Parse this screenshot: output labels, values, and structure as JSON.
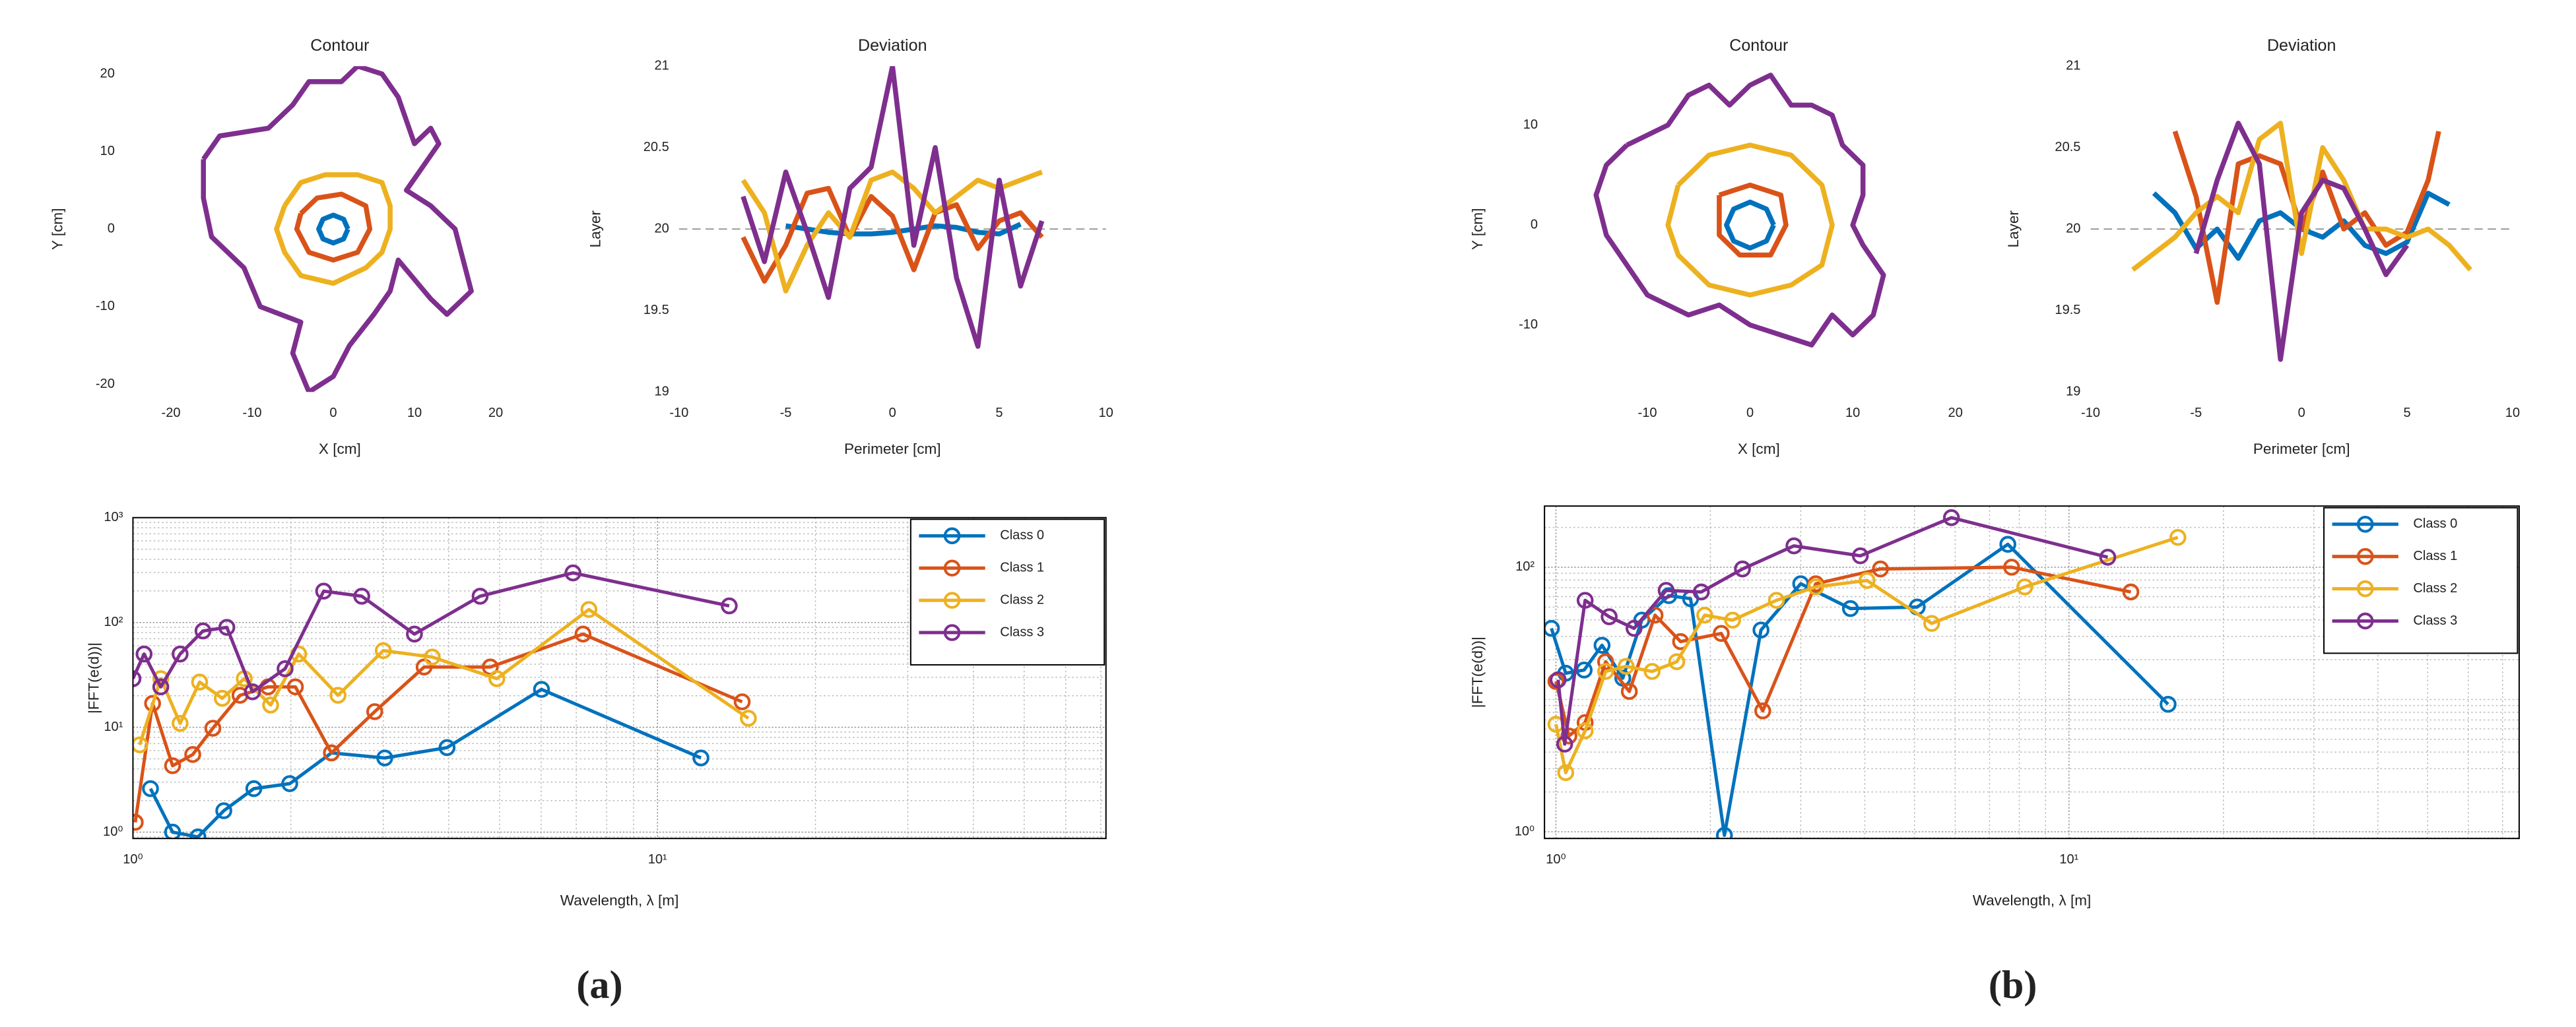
{
  "panel_labels": [
    "(a)",
    "(b)"
  ],
  "chart_data": [
    {
      "type": "line",
      "title": "Contour",
      "xlabel": "X [cm]",
      "ylabel": "Y [cm]",
      "xlim": [
        -25.7,
        27.3
      ],
      "ylim": [
        -21,
        21
      ],
      "xticks": [
        -20,
        -10,
        0,
        10,
        20
      ],
      "yticks": [
        -20,
        -10,
        0,
        10,
        20
      ],
      "grid": false,
      "box": false,
      "series": [
        {
          "color": "#7E2F8E",
          "x": [
            -16,
            -14,
            -8,
            -5,
            -3,
            1,
            3,
            6,
            8,
            9,
            10,
            12,
            13,
            11,
            9,
            12,
            15,
            16,
            17,
            14,
            12,
            8,
            7,
            5,
            2,
            0,
            -3,
            -5,
            -4,
            -9,
            -11,
            -15,
            -16,
            -16
          ],
          "values": [
            9,
            12,
            13,
            16,
            19,
            19,
            21,
            20,
            17,
            14,
            11,
            13,
            11,
            8,
            5,
            3,
            0,
            -4,
            -8,
            -11,
            -9,
            -4,
            -8,
            -11,
            -15,
            -19,
            -21,
            -16,
            -12,
            -10,
            -5,
            -1,
            4,
            9
          ]
        },
        {
          "color": "#EDB120",
          "x": [
            -6,
            -4,
            -1,
            3,
            6,
            7,
            7,
            6,
            4,
            0,
            -4,
            -6,
            -7,
            -6
          ],
          "values": [
            3,
            6,
            7,
            7,
            6,
            3,
            0,
            -3,
            -5,
            -7,
            -6,
            -3,
            0,
            3
          ]
        },
        {
          "color": "#D95319",
          "x": [
            -4,
            -2,
            1,
            4,
            4.5,
            3,
            0,
            -3,
            -4.5,
            -4
          ],
          "values": [
            2,
            4,
            4.5,
            3,
            0,
            -3,
            -4,
            -3,
            0,
            2
          ]
        },
        {
          "color": "#0072BD",
          "x": [
            1.8,
            1.27,
            0,
            -1.27,
            -1.8,
            -1.27,
            0,
            1.27,
            1.8
          ],
          "values": [
            0,
            1.27,
            1.8,
            1.27,
            0,
            -1.27,
            -1.8,
            -1.27,
            0
          ]
        }
      ]
    },
    {
      "type": "line",
      "title": "Deviation",
      "xlabel": "Perimeter [cm]",
      "ylabel": "Layer",
      "xlim": [
        -10,
        10
      ],
      "ylim": [
        19,
        21
      ],
      "xticks": [
        -10,
        -5,
        0,
        5,
        10
      ],
      "yticks": [
        19,
        19.5,
        20,
        20.5,
        21
      ],
      "grid": false,
      "box": false,
      "hline": 20,
      "series": [
        {
          "color": "#0072BD",
          "x": [
            -5,
            -4,
            -3,
            -2,
            -1,
            0,
            1,
            2,
            3,
            4,
            5,
            6
          ],
          "values": [
            20.02,
            20.0,
            19.98,
            19.97,
            19.97,
            19.98,
            20.0,
            20.02,
            20.01,
            19.98,
            19.97,
            20.03
          ]
        },
        {
          "color": "#D95319",
          "x": [
            -7,
            -6,
            -5,
            -4,
            -3,
            -2,
            -1,
            0,
            1,
            2,
            3,
            4,
            5,
            6,
            7
          ],
          "values": [
            19.95,
            19.68,
            19.9,
            20.22,
            20.25,
            19.95,
            20.2,
            20.08,
            19.75,
            20.1,
            20.15,
            19.88,
            20.05,
            20.1,
            19.95
          ]
        },
        {
          "color": "#EDB120",
          "x": [
            -7,
            -6,
            -5,
            -4,
            -3,
            -2,
            -1,
            0,
            1,
            2,
            3,
            4,
            5,
            6,
            7
          ],
          "values": [
            20.3,
            20.1,
            19.62,
            19.9,
            20.1,
            19.95,
            20.3,
            20.35,
            20.25,
            20.1,
            20.2,
            20.3,
            20.25,
            20.3,
            20.35
          ]
        },
        {
          "color": "#7E2F8E",
          "x": [
            -7,
            -6,
            -5,
            -4,
            -3,
            -2,
            -1,
            0,
            1,
            2,
            3,
            4,
            5,
            6,
            7
          ],
          "values": [
            20.2,
            19.8,
            20.35,
            19.98,
            19.58,
            20.25,
            20.38,
            21.0,
            19.9,
            20.5,
            19.7,
            19.28,
            20.3,
            19.65,
            20.05
          ]
        }
      ]
    },
    {
      "type": "line",
      "xlabel": "Wavelength, λ [m]",
      "ylabel": "|FFT(e(d))|",
      "xscale": "log",
      "yscale": "log",
      "xlim": [
        1,
        71.6
      ],
      "ylim": [
        0.87,
        1000
      ],
      "xticks": [
        {
          "value": 1,
          "label": "10⁰"
        },
        {
          "value": 10,
          "label": "10¹"
        }
      ],
      "yticks": [
        {
          "value": 1,
          "label": "10⁰"
        },
        {
          "value": 10,
          "label": "10¹"
        },
        {
          "value": 100,
          "label": "10²"
        },
        {
          "value": 1000,
          "label": "10³"
        }
      ],
      "grid": true,
      "box": true,
      "marker": "o",
      "legend": "upper right",
      "series": [
        {
          "name": "Class 0",
          "color": "#0072BD",
          "x": [
            1.08,
            1.19,
            1.33,
            1.49,
            1.7,
            1.99,
            2.39,
            3.02,
            3.97,
            6.01,
            12.1
          ],
          "values": [
            2.6,
            1.0,
            0.9,
            1.6,
            2.6,
            2.9,
            5.7,
            5.1,
            6.4,
            23,
            5.1
          ]
        },
        {
          "name": "Class 1",
          "color": "#D95319",
          "x": [
            1.01,
            1.09,
            1.19,
            1.3,
            1.42,
            1.6,
            1.81,
            2.04,
            2.39,
            2.89,
            3.59,
            4.8,
            7.21,
            14.5
          ],
          "values": [
            1.24,
            16.9,
            4.3,
            5.5,
            9.8,
            20.2,
            24.3,
            24.3,
            5.7,
            14.1,
            37.6,
            37.6,
            77.5,
            17.5
          ]
        },
        {
          "name": "Class 2",
          "color": "#EDB120",
          "x": [
            1.03,
            1.13,
            1.23,
            1.34,
            1.48,
            1.63,
            1.83,
            2.07,
            2.46,
            3.0,
            3.72,
            4.94,
            7.4,
            14.9
          ],
          "values": [
            6.8,
            29.1,
            10.9,
            27,
            18.9,
            29.1,
            16.3,
            50,
            20.2,
            53.9,
            46.8,
            29.1,
            133,
            12.2
          ]
        },
        {
          "name": "Class 3",
          "color": "#7E2F8E",
          "x": [
            1.0,
            1.05,
            1.13,
            1.23,
            1.36,
            1.51,
            1.69,
            1.95,
            2.31,
            2.73,
            3.44,
            4.59,
            6.9,
            13.7
          ],
          "values": [
            29.1,
            50,
            24.3,
            50,
            83,
            89.8,
            21.8,
            36.2,
            199,
            178,
            77.5,
            178,
            297,
            144
          ]
        }
      ]
    },
    {
      "type": "line",
      "title": "Contour",
      "xlabel": "X [cm]",
      "ylabel": "Y [cm]",
      "xlim": [
        -19.7,
        21.4
      ],
      "ylim": [
        -16.7,
        15.9
      ],
      "xticks": [
        -10,
        0,
        10,
        20
      ],
      "yticks": [
        -10,
        0,
        10
      ],
      "grid": false,
      "box": false,
      "series": [
        {
          "color": "#7E2F8E",
          "x": [
            -12,
            -8,
            -6,
            -4,
            -2,
            0,
            2,
            4,
            6,
            8,
            9,
            11,
            11,
            10,
            11,
            13,
            12,
            10,
            8,
            6,
            3,
            0,
            -3,
            -6,
            -10,
            -12,
            -14,
            -15,
            -14,
            -12
          ],
          "values": [
            8,
            10,
            13,
            14,
            12,
            14,
            15,
            12,
            12,
            11,
            8,
            6,
            3,
            0,
            -2,
            -5,
            -9,
            -11,
            -9,
            -12,
            -11,
            -10,
            -8,
            -9,
            -7,
            -4,
            -1,
            3,
            6,
            8
          ]
        },
        {
          "color": "#EDB120",
          "x": [
            -7,
            -4,
            0,
            4,
            7,
            8,
            7,
            4,
            0,
            -4,
            -7,
            -8,
            -7
          ],
          "values": [
            4,
            7,
            8,
            7,
            4,
            0,
            -4,
            -6,
            -7,
            -6,
            -3,
            0,
            4
          ]
        },
        {
          "color": "#D95319",
          "x": [
            -3,
            0,
            3,
            3.5,
            2,
            -1,
            -3,
            -3
          ],
          "values": [
            3,
            4,
            3,
            0,
            -3,
            -3,
            -1,
            3
          ]
        },
        {
          "color": "#0072BD",
          "x": [
            2.3,
            1.6,
            0,
            -1.6,
            -2.3,
            -1.6,
            0,
            1.6,
            2.3
          ],
          "values": [
            0,
            1.6,
            2.3,
            1.6,
            0,
            -1.6,
            -2.3,
            -1.6,
            0
          ]
        }
      ]
    },
    {
      "type": "line",
      "title": "Deviation",
      "xlabel": "Perimeter [cm]",
      "ylabel": "Layer",
      "xlim": [
        -10,
        10
      ],
      "ylim": [
        19,
        21
      ],
      "xticks": [
        -10,
        -5,
        0,
        5,
        10
      ],
      "yticks": [
        19,
        19.5,
        20,
        20.5,
        21
      ],
      "grid": false,
      "box": false,
      "hline": 20,
      "series": [
        {
          "color": "#0072BD",
          "x": [
            -7,
            -6,
            -5,
            -4,
            -3,
            -2,
            -1,
            0,
            1,
            2,
            3,
            4,
            5,
            6,
            7
          ],
          "values": [
            20.22,
            20.1,
            19.88,
            20.0,
            19.82,
            20.05,
            20.1,
            20.0,
            19.95,
            20.05,
            19.9,
            19.85,
            19.92,
            20.22,
            20.15
          ]
        },
        {
          "color": "#D95319",
          "x": [
            -6,
            -5,
            -4,
            -3,
            -2,
            -1,
            0,
            1,
            2,
            3,
            4,
            5,
            6,
            6.5
          ],
          "values": [
            20.6,
            20.2,
            19.55,
            20.4,
            20.45,
            20.4,
            20.0,
            20.35,
            20.0,
            20.1,
            19.9,
            19.98,
            20.3,
            20.6
          ]
        },
        {
          "color": "#EDB120",
          "x": [
            -8,
            -7,
            -6,
            -5,
            -4,
            -3,
            -2,
            -1,
            0,
            1,
            2,
            3,
            4,
            5,
            6,
            7,
            8
          ],
          "values": [
            19.75,
            19.85,
            19.95,
            20.1,
            20.2,
            20.1,
            20.55,
            20.65,
            19.85,
            20.5,
            20.3,
            20.0,
            20.0,
            19.95,
            20.0,
            19.9,
            19.75
          ]
        },
        {
          "color": "#7E2F8E",
          "x": [
            -5,
            -4,
            -3,
            -2,
            -1,
            0,
            1,
            2,
            3,
            4,
            5
          ],
          "values": [
            19.85,
            20.3,
            20.65,
            20.4,
            19.2,
            20.1,
            20.3,
            20.25,
            20.0,
            19.72,
            19.9
          ]
        }
      ]
    },
    {
      "type": "line",
      "xlabel": "Wavelength, λ [m]",
      "ylabel": "|FFT(e(d))|",
      "xscale": "log",
      "yscale": "log",
      "xlim": [
        0.95,
        75.4
      ],
      "ylim": [
        0.89,
        290
      ],
      "xticks": [
        {
          "value": 1,
          "label": "10⁰"
        },
        {
          "value": 10,
          "label": "10¹"
        }
      ],
      "yticks": [
        {
          "value": 1,
          "label": "10⁰"
        },
        {
          "value": 100,
          "label": "10²"
        }
      ],
      "grid": true,
      "box": true,
      "marker": "o",
      "legend": "upper right",
      "series": [
        {
          "name": "Class 0",
          "color": "#0072BD",
          "x": [
            0.98,
            1.045,
            1.135,
            1.23,
            1.35,
            1.47,
            1.66,
            1.83,
            2.13,
            2.51,
            3.0,
            3.75,
            5.06,
            7.6,
            15.6
          ],
          "values": [
            34.5,
            15.8,
            16.7,
            25.7,
            14.5,
            39.8,
            61,
            57.8,
            0.94,
            33.5,
            75,
            48.7,
            50,
            149,
            9.2
          ]
        },
        {
          "name": "Class 1",
          "color": "#D95319",
          "x": [
            1.0,
            1.06,
            1.14,
            1.25,
            1.39,
            1.56,
            1.75,
            2.1,
            2.53,
            3.21,
            4.29,
            7.73,
            13.2
          ],
          "values": [
            13.7,
            5.3,
            6.7,
            19.3,
            11.5,
            43.4,
            27.4,
            31.6,
            8.2,
            75,
            97,
            100,
            65
          ]
        },
        {
          "name": "Class 2",
          "color": "#EDB120",
          "x": [
            1.0,
            1.045,
            1.14,
            1.25,
            1.37,
            1.54,
            1.72,
            1.95,
            2.21,
            2.69,
            3.21,
            4.04,
            5.4,
            8.2,
            16.3
          ],
          "values": [
            6.5,
            2.8,
            5.8,
            16.3,
            17.8,
            16.3,
            19.3,
            43.4,
            39.8,
            56.2,
            71,
            79.4,
            37.6,
            71,
            168
          ]
        },
        {
          "name": "Class 3",
          "color": "#7E2F8E",
          "x": [
            1.01,
            1.04,
            1.14,
            1.27,
            1.42,
            1.64,
            1.92,
            2.31,
            2.91,
            3.92,
            5.9,
            11.9
          ],
          "values": [
            14.1,
            4.6,
            56.2,
            42.2,
            34.5,
            66.8,
            65,
            97,
            145,
            122,
            237,
            119
          ]
        }
      ]
    }
  ]
}
